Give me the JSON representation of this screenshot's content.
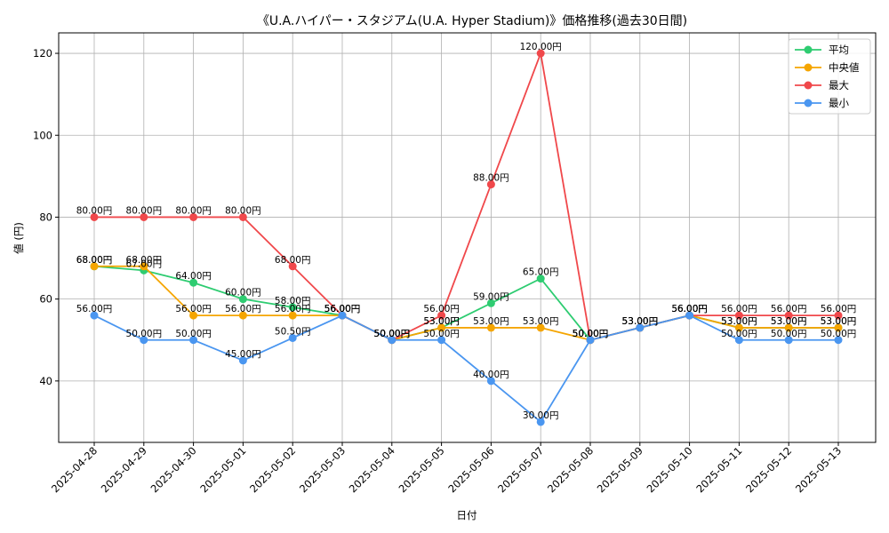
{
  "chart_data": {
    "type": "line",
    "title": "《U.A.ハイパー・スタジアム(U.A. Hyper Stadium)》価格推移(過去30日間)",
    "xlabel": "日付",
    "ylabel": "値 (円)",
    "ylim": [
      25,
      125
    ],
    "yticks": [
      40,
      60,
      80,
      100,
      120
    ],
    "grid": true,
    "legend_position": "top-right",
    "value_suffix": "円",
    "categories": [
      "2025-04-28",
      "2025-04-29",
      "2025-04-30",
      "2025-05-01",
      "2025-05-02",
      "2025-05-03",
      "2025-05-04",
      "2025-05-05",
      "2025-05-06",
      "2025-05-07",
      "2025-05-08",
      "2025-05-09",
      "2025-05-10",
      "2025-05-11",
      "2025-05-12",
      "2025-05-13"
    ],
    "series": [
      {
        "name": "平均",
        "color": "#2ecc71",
        "values": [
          68,
          67,
          64,
          60,
          58,
          56,
          50,
          53,
          59,
          65,
          50,
          53,
          56,
          53,
          53,
          53
        ]
      },
      {
        "name": "中央値",
        "color": "#f5a500",
        "values": [
          68,
          68,
          56,
          56,
          56,
          56,
          50,
          53,
          53,
          53,
          50,
          53,
          56,
          53,
          53,
          53
        ]
      },
      {
        "name": "最大",
        "color": "#f0484b",
        "values": [
          80,
          80,
          80,
          80,
          68,
          56,
          50,
          56,
          88,
          120,
          50,
          53,
          56,
          56,
          56,
          56
        ]
      },
      {
        "name": "最小",
        "color": "#4a96f0",
        "values": [
          56,
          50,
          50,
          45,
          50.5,
          56,
          50,
          50,
          40,
          30,
          50,
          53,
          56,
          50,
          50,
          50
        ]
      }
    ]
  }
}
